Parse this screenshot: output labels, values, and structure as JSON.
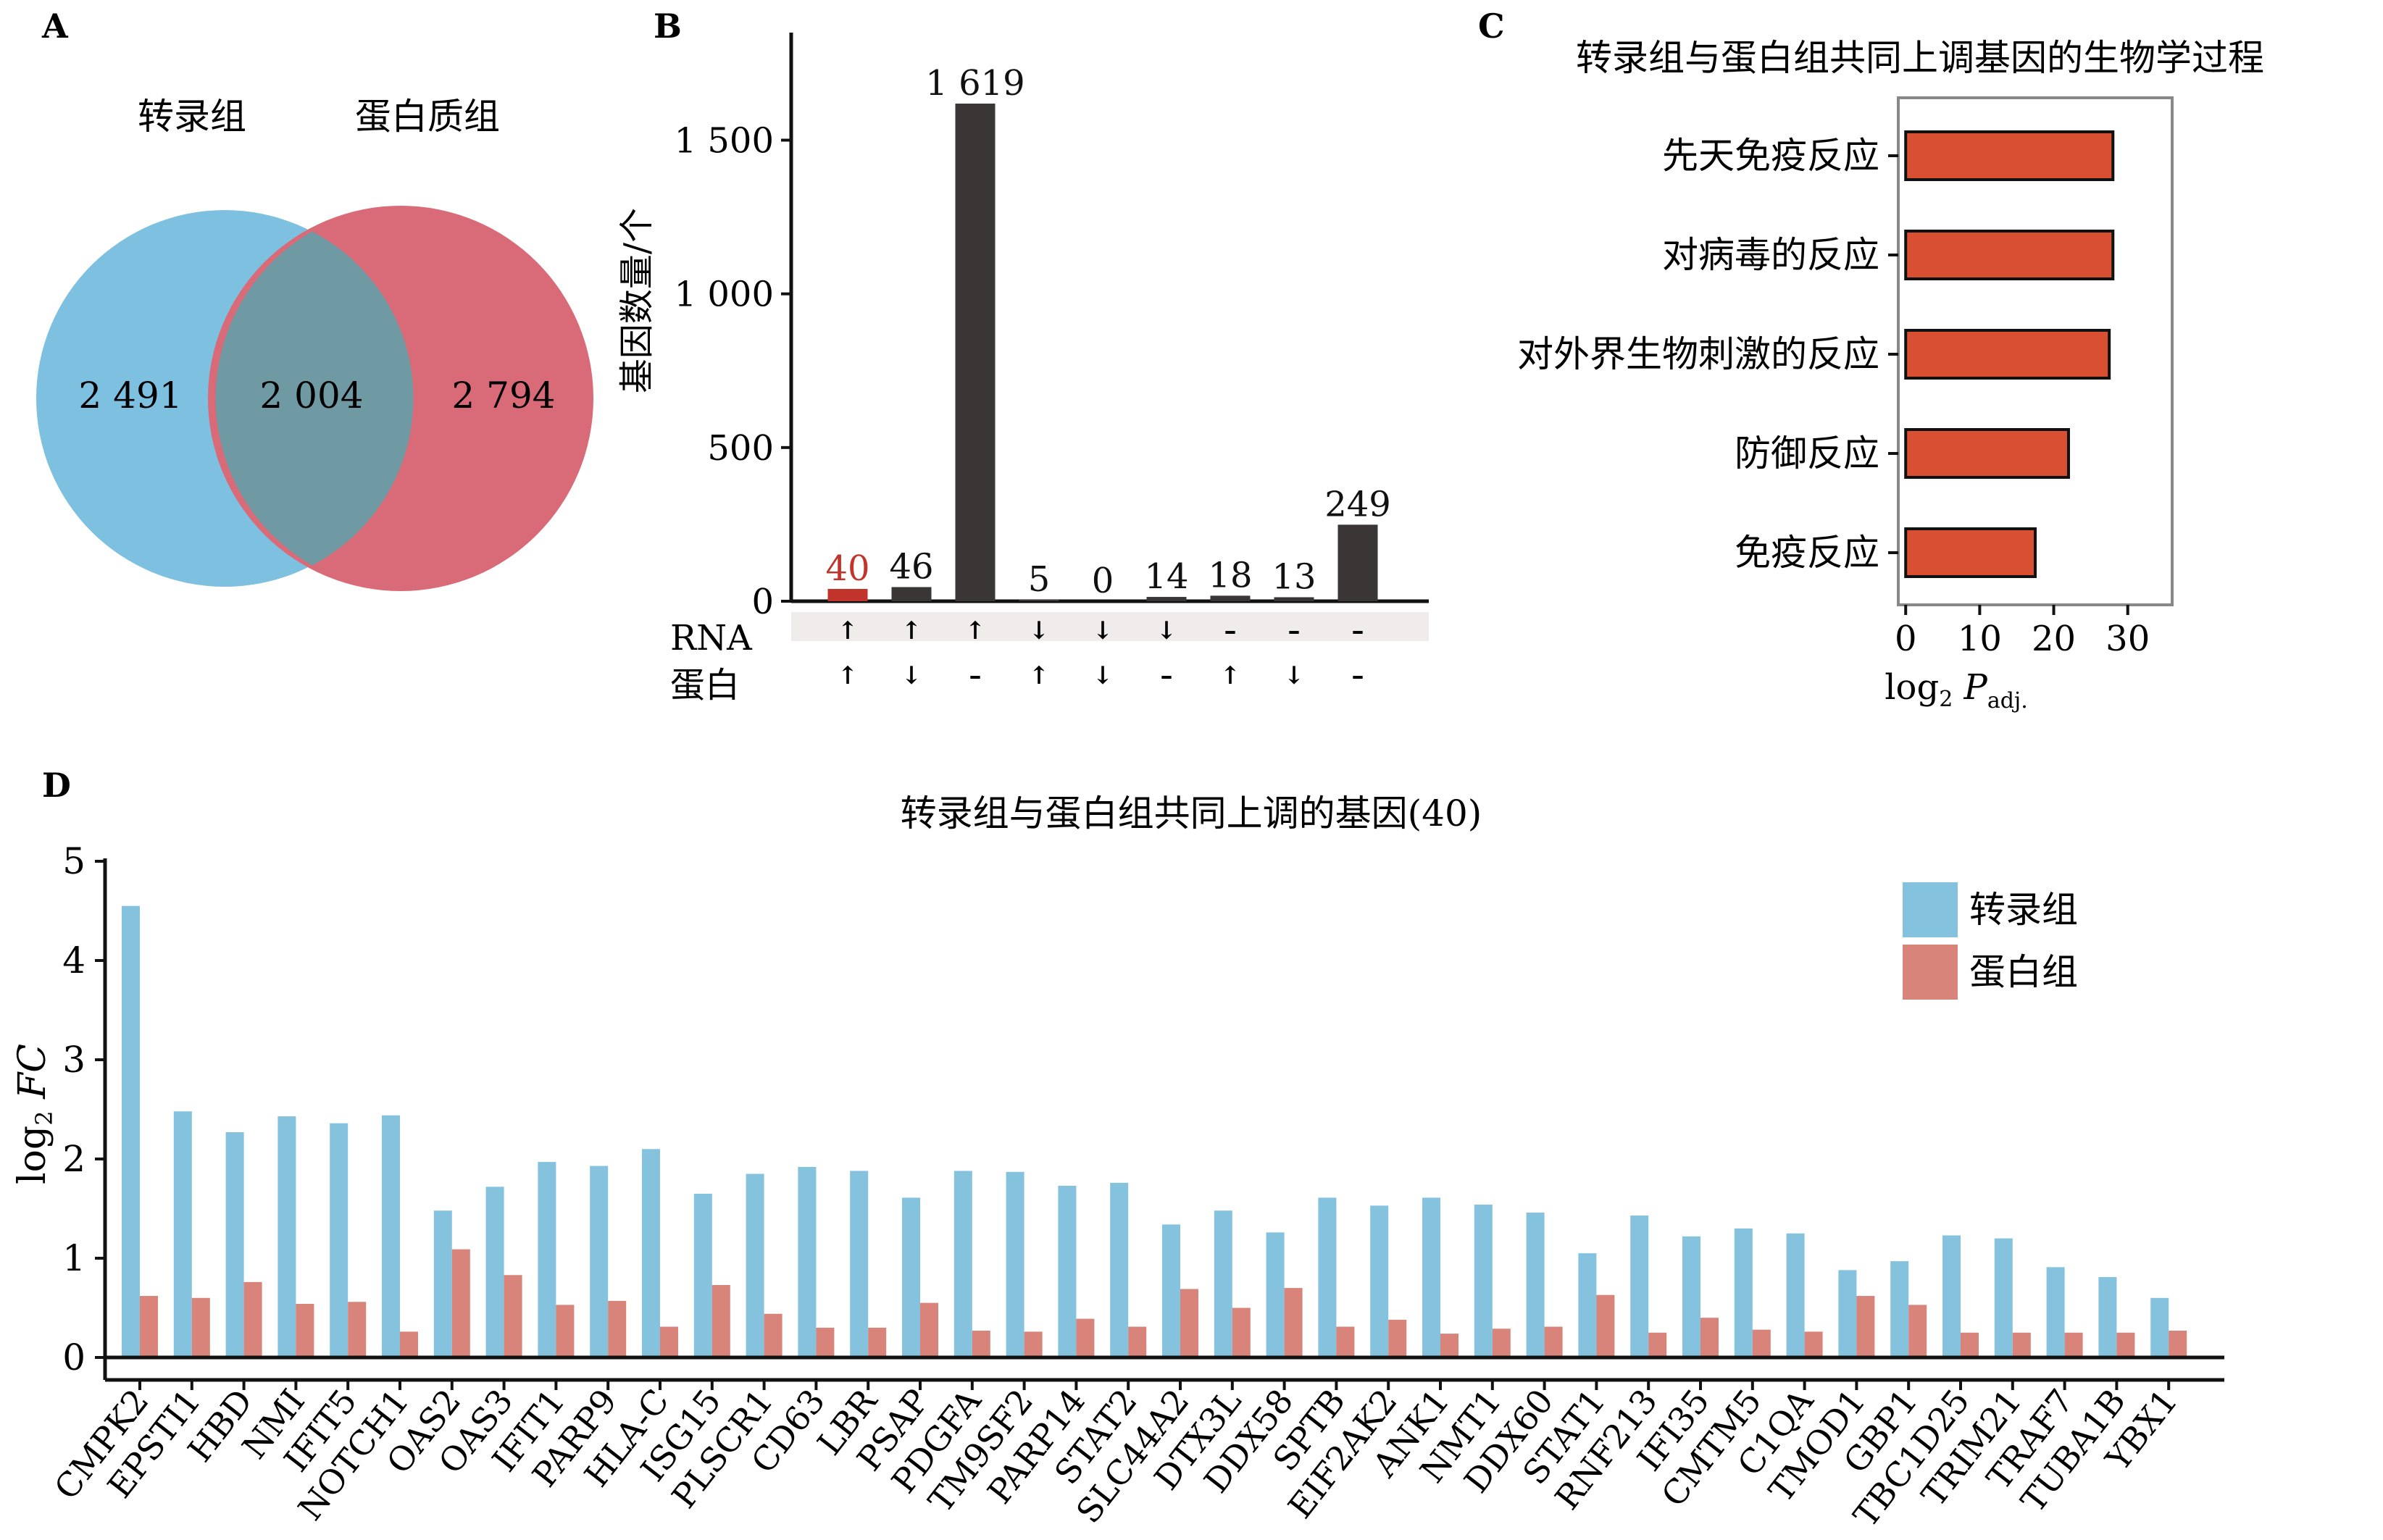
{
  "panels": {
    "a": {
      "letter": "A",
      "set_left": "转录组",
      "set_right": "蛋白质组",
      "only_left": "2 491",
      "overlap": "2 004",
      "only_right": "2 794",
      "colors": {
        "left": "#7ec0e0",
        "right": "#d96b78",
        "overlap": "#6f9aa3"
      }
    },
    "b": {
      "letter": "B",
      "row_rna": "RNA",
      "row_protein": "蛋白",
      "bar_color": "#3a3635",
      "highlight_color": "#c0342b"
    },
    "c": {
      "letter": "C",
      "bar_color": "#d94f32"
    },
    "d": {
      "letter": "D",
      "legend": [
        {
          "label": "转录组",
          "color": "#85c2de"
        },
        {
          "label": "蛋白组",
          "color": "#d8847a"
        }
      ]
    }
  },
  "chart_data": [
    {
      "panel": "B",
      "type": "bar",
      "title": "",
      "xlabel": "",
      "ylabel": "基因数量/个",
      "ylim": [
        0,
        1850
      ],
      "yticks": [
        0,
        500,
        1000,
        1500
      ],
      "ytick_labels": [
        "0",
        "500",
        "1 000",
        "1 500"
      ],
      "values": [
        40,
        46,
        1619,
        5,
        0,
        14,
        18,
        13,
        249
      ],
      "value_labels": [
        "40",
        "46",
        "1 619",
        "5",
        "0",
        "14",
        "18",
        "13",
        "249"
      ],
      "rna": [
        "↑",
        "↑",
        "↑",
        "↓",
        "↓",
        "↓",
        "–",
        "–",
        "–"
      ],
      "protein": [
        "↑",
        "↓",
        "–",
        "↑",
        "↓",
        "–",
        "↑",
        "↓",
        "–"
      ],
      "highlight_index": 0
    },
    {
      "panel": "C",
      "type": "bar",
      "orientation": "horizontal",
      "title": "转录组与蛋白组共同上调基因的生物学过程",
      "categories": [
        "先天免疫反应",
        "对病毒的反应",
        "对外界生物刺激的反应",
        "防御反应",
        "免疫反应"
      ],
      "values": [
        28,
        28,
        27.5,
        22,
        17.5
      ],
      "xlabel": "log2 Padj.",
      "xlim": [
        -1,
        36
      ],
      "xticks": [
        0,
        10,
        20,
        30
      ]
    },
    {
      "panel": "D",
      "type": "bar",
      "title": "转录组与蛋白组共同上调的基因(40)",
      "xlabel": "",
      "ylabel": "log2 FC",
      "ylim": [
        0,
        5
      ],
      "yticks": [
        0,
        1,
        2,
        3,
        4,
        5
      ],
      "grid": false,
      "legend_position": "top-right",
      "categories": [
        "CMPK2",
        "EPSTI1",
        "HBD",
        "NMI",
        "IFIT5",
        "NOTCH1",
        "OAS2",
        "OAS3",
        "IFIT1",
        "PARP9",
        "HLA-C",
        "ISG15",
        "PLSCR1",
        "CD63",
        "LBR",
        "PSAP",
        "PDGFA",
        "TM9SF2",
        "PARP14",
        "STAT2",
        "SLC44A2",
        "DTX3L",
        "DDX58",
        "SPTB",
        "EIF2AK2",
        "ANK1",
        "NMT1",
        "DDX60",
        "STAT1",
        "RNF213",
        "IFI35",
        "CMTM5",
        "C1QA",
        "TMOD1",
        "GBP1",
        "TBC1D25",
        "TRIM21",
        "TRAF7",
        "TUBA1B",
        "YBX1"
      ],
      "series": [
        {
          "name": "转录组",
          "values": [
            4.55,
            2.48,
            2.27,
            2.43,
            2.36,
            2.44,
            1.48,
            1.72,
            1.97,
            1.93,
            2.1,
            1.65,
            1.85,
            1.92,
            1.88,
            1.61,
            1.88,
            1.87,
            1.73,
            1.76,
            1.34,
            1.48,
            1.26,
            1.61,
            1.53,
            1.61,
            1.54,
            1.46,
            1.05,
            1.43,
            1.22,
            1.3,
            1.25,
            0.88,
            0.97,
            1.23,
            1.2,
            0.91,
            0.81,
            0.6
          ]
        },
        {
          "name": "蛋白组",
          "values": [
            0.62,
            0.6,
            0.76,
            0.54,
            0.56,
            0.26,
            1.09,
            0.83,
            0.53,
            0.57,
            0.31,
            0.73,
            0.44,
            0.3,
            0.3,
            0.55,
            0.27,
            0.26,
            0.39,
            0.31,
            0.69,
            0.5,
            0.7,
            0.31,
            0.38,
            0.24,
            0.29,
            0.31,
            0.63,
            0.25,
            0.4,
            0.28,
            0.26,
            0.62,
            0.53,
            0.25,
            0.25,
            0.25,
            0.25,
            0.27
          ]
        }
      ]
    }
  ]
}
